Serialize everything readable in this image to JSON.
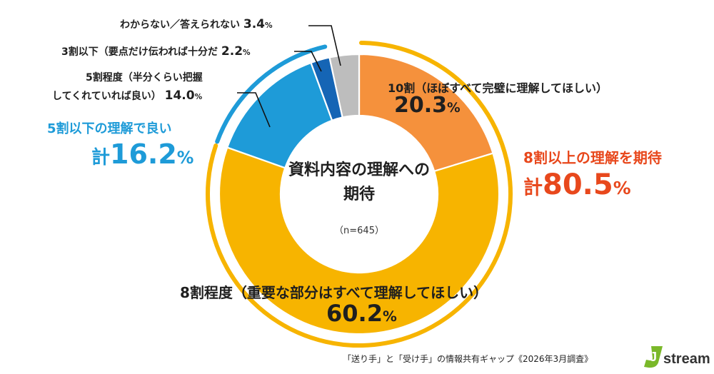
{
  "chart_data": {
    "type": "pie",
    "title": "資料内容の理解への期待",
    "sample": "（n=645）",
    "unit": "%",
    "slices": [
      {
        "label": "10割（ほぼすべて完璧に理解してほしい）",
        "value": 20.3,
        "value_text": "20.3",
        "color": "#f5913c"
      },
      {
        "label": "8割程度（重要な部分はすべて理解してほしい）",
        "value": 60.2,
        "value_text": "60.2",
        "color": "#f7b400"
      },
      {
        "label": "5割程度（半分くらい把握",
        "label2": "してくれていれば良い）",
        "value": 14.0,
        "value_text": "14.0",
        "color": "#1e9bd8"
      },
      {
        "label": "3割以下（要点だけ伝われば十分だ",
        "value": 2.2,
        "value_text": "2.2",
        "color": "#1565b5"
      },
      {
        "label": "わからない／答えられない",
        "value": 3.4,
        "value_text": "3.4",
        "color": "#bdbdbd"
      }
    ],
    "groups": [
      {
        "label": "8割以上の理解を期待",
        "total_prefix": "計",
        "total": "80.5",
        "color": "#e8481c"
      },
      {
        "label": "5割以下の理解で良い",
        "total_prefix": "計",
        "total": "16.2",
        "color": "#1e9bd8"
      }
    ]
  },
  "footer": {
    "source": "「送り手」と「受け手」の情報共有ギャップ《2026年3月調査》",
    "logo_text": "stream",
    "logo_letter": "J"
  },
  "colors": {
    "orange_arc": "#f7b400",
    "blue_arc": "#1e9bd8",
    "logo_green": "#7ab829"
  }
}
